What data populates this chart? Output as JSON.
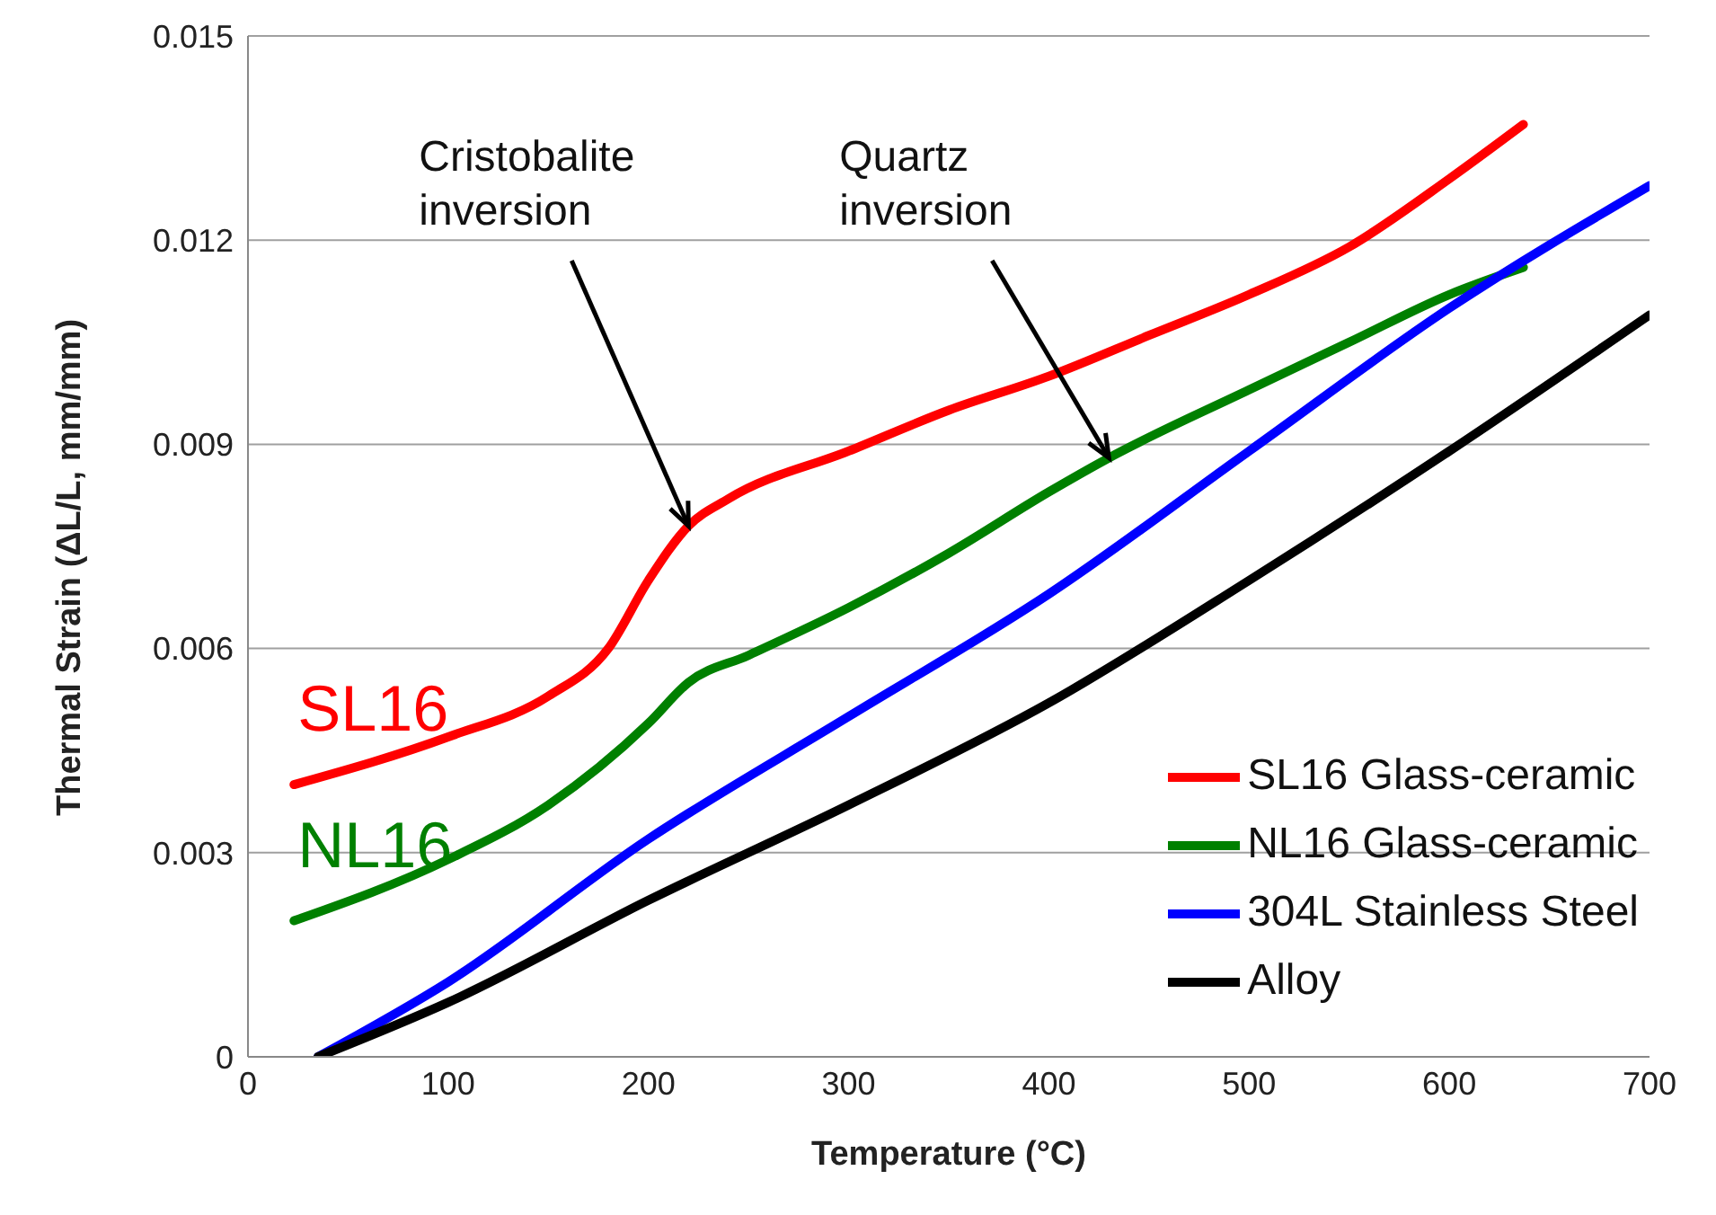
{
  "chart_data": {
    "type": "line",
    "xlabel": "Temperature (°C)",
    "ylabel": "Thermal Strain (ΔL/L, mm/mm)",
    "xlim": [
      0,
      700
    ],
    "xticks": [
      0,
      100,
      200,
      300,
      400,
      500,
      600,
      700
    ],
    "ylim": [
      0,
      0.015
    ],
    "yticks": [
      {
        "value": 0,
        "label": "0"
      },
      0.003,
      0.006,
      0.009,
      0.012,
      0.015
    ],
    "grid": "y",
    "legend": "bottom right",
    "marker": "none",
    "line_style": "solid",
    "series": [
      {
        "name": "SL16 Glass-ceramic",
        "color": "#ff0000",
        "x": [
          23,
          100,
          150,
          180,
          200,
          220,
          240,
          300,
          350,
          400,
          450,
          500,
          550,
          600,
          637
        ],
        "values": [
          0.004,
          0.0047,
          0.0053,
          0.006,
          0.007,
          0.0078,
          0.0082,
          0.0089,
          0.0095,
          0.01,
          0.0106,
          0.0112,
          0.0119,
          0.0129,
          0.0137
        ]
      },
      {
        "name": "NL16 Glass-ceramic",
        "color": "#008000",
        "x": [
          23,
          100,
          150,
          200,
          220,
          250,
          300,
          350,
          400,
          430,
          500,
          550,
          600,
          637
        ],
        "values": [
          0.002,
          0.0029,
          0.0037,
          0.0049,
          0.0055,
          0.0059,
          0.0066,
          0.0074,
          0.0083,
          0.0088,
          0.0098,
          0.0105,
          0.0112,
          0.0116
        ]
      },
      {
        "name": "304L Stainless Steel",
        "color": "#0000ff",
        "x": [
          35,
          100,
          200,
          300,
          400,
          500,
          600,
          700
        ],
        "values": [
          0,
          0.0011,
          0.0032,
          0.005,
          0.0068,
          0.0089,
          0.011,
          0.0128
        ]
      },
      {
        "name": "Alloy",
        "color": "#000000",
        "x": [
          35,
          100,
          200,
          300,
          400,
          500,
          600,
          700
        ],
        "values": [
          0,
          0.0008,
          0.0023,
          0.0037,
          0.0052,
          0.007,
          0.0089,
          0.0109
        ]
      }
    ],
    "annotations": [
      {
        "text": "Cristobalite inversion",
        "x": 220,
        "y": 0.0078
      },
      {
        "text": "Quartz inversion",
        "x": 430,
        "y": 0.0088
      },
      "SL16",
      "NL16"
    ]
  }
}
